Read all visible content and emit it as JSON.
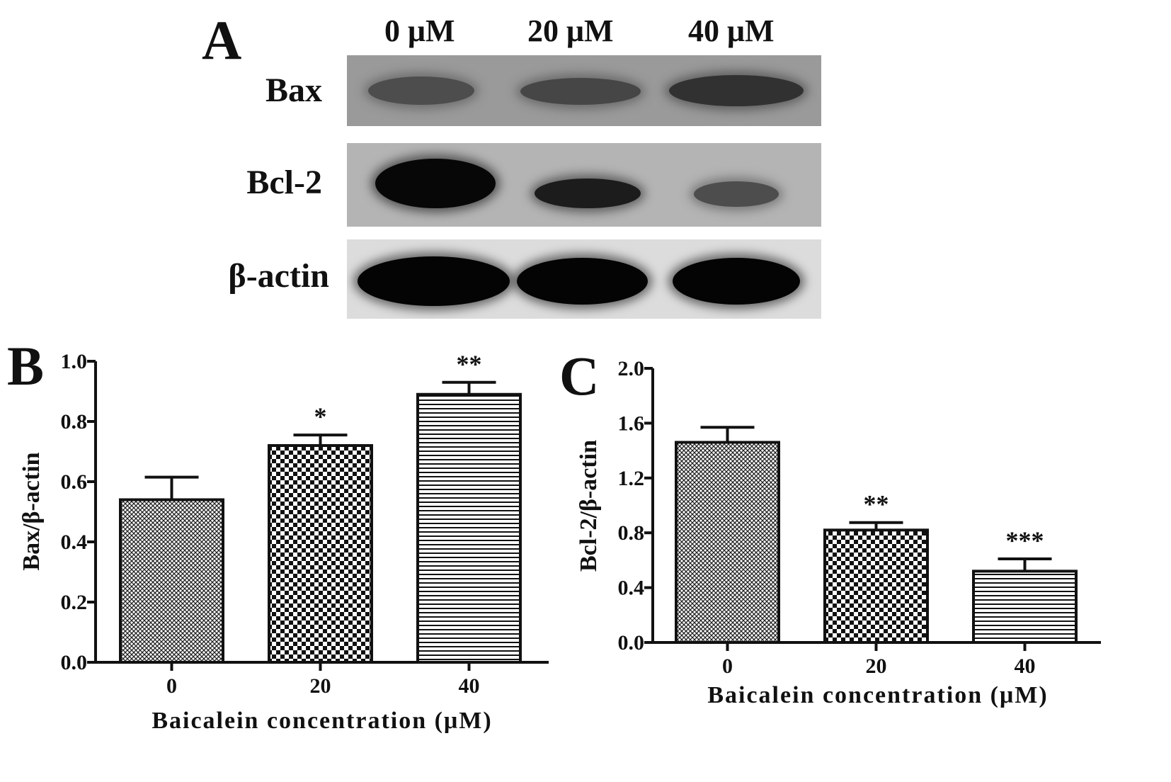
{
  "panel_a": {
    "letter": "A",
    "lanes": [
      "0 μM",
      "20 μM",
      "40 μM"
    ],
    "rows": [
      {
        "label": "Bax",
        "name": "bax",
        "intensity": [
          0.45,
          0.5,
          0.65
        ]
      },
      {
        "label": "Bcl-2",
        "name": "bcl2",
        "intensity": [
          0.95,
          0.8,
          0.45
        ]
      },
      {
        "label": "β-actin",
        "name": "beta-actin",
        "intensity": [
          0.97,
          0.97,
          0.97
        ]
      }
    ]
  },
  "chart_data": [
    {
      "panel": "B",
      "type": "bar",
      "categories": [
        "0",
        "20",
        "40"
      ],
      "values": [
        0.54,
        0.72,
        0.89
      ],
      "errors": [
        0.075,
        0.035,
        0.04
      ],
      "significance": [
        "",
        "*",
        "**"
      ],
      "patterns": [
        "crosshatch",
        "checker",
        "horizontal"
      ],
      "xlabel": "Baicalein concentration (μM)",
      "ylabel": "Bax/β-actin",
      "ylim": [
        0,
        1.0
      ],
      "yticks": [
        "0.0",
        "0.2",
        "0.4",
        "0.6",
        "0.8",
        "1.0"
      ],
      "grid": false
    },
    {
      "panel": "C",
      "type": "bar",
      "categories": [
        "0",
        "20",
        "40"
      ],
      "values": [
        1.46,
        0.82,
        0.52
      ],
      "errors": [
        0.11,
        0.055,
        0.09
      ],
      "significance": [
        "",
        "**",
        "***"
      ],
      "patterns": [
        "crosshatch",
        "checker",
        "horizontal"
      ],
      "xlabel": "Baicalein concentration (μM)",
      "ylabel": "Bcl-2/β-actin",
      "ylim": [
        0,
        2.0
      ],
      "yticks": [
        "0.0",
        "0.4",
        "0.8",
        "1.2",
        "1.6",
        "2.0"
      ],
      "grid": false
    }
  ]
}
